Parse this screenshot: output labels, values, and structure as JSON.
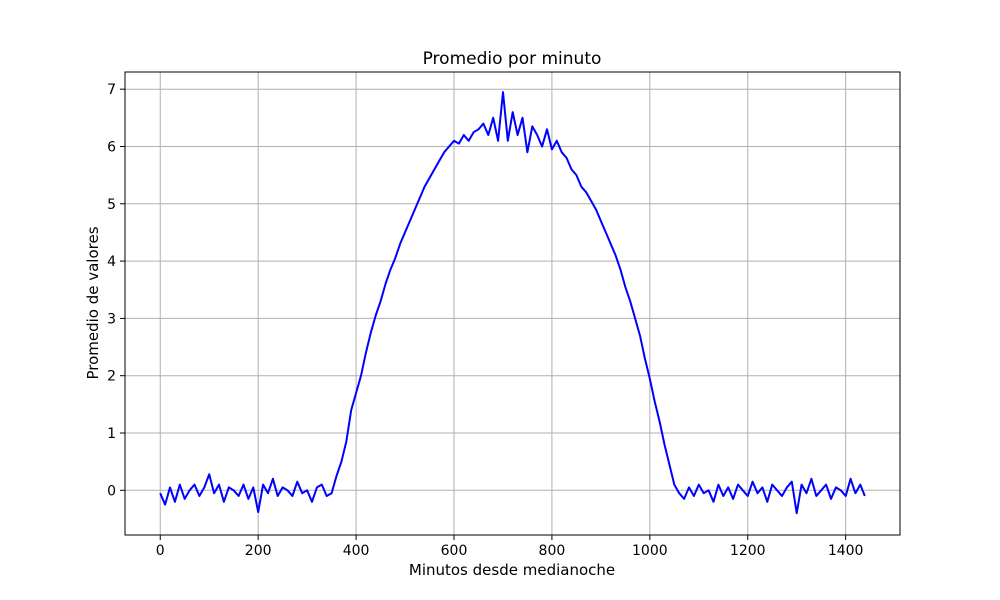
{
  "chart_data": {
    "type": "line",
    "title": "Promedio por minuto",
    "xlabel": "Minutos desde medianoche",
    "ylabel": "Promedio de valores",
    "xlim": [
      -72,
      1511
    ],
    "ylim": [
      -0.78,
      7.3
    ],
    "xticks": [
      0,
      200,
      400,
      600,
      800,
      1000,
      1200,
      1400
    ],
    "yticks": [
      0,
      1,
      2,
      3,
      4,
      5,
      6,
      7
    ],
    "grid": true,
    "series": [
      {
        "color": "#0000ff",
        "x": [
          0,
          10,
          20,
          30,
          40,
          50,
          60,
          70,
          80,
          90,
          100,
          110,
          120,
          130,
          140,
          150,
          160,
          170,
          180,
          190,
          200,
          210,
          220,
          230,
          240,
          250,
          260,
          270,
          280,
          290,
          300,
          310,
          320,
          330,
          340,
          350,
          360,
          370,
          380,
          390,
          400,
          410,
          420,
          430,
          440,
          450,
          460,
          470,
          480,
          490,
          500,
          510,
          520,
          530,
          540,
          550,
          560,
          570,
          580,
          590,
          600,
          610,
          620,
          630,
          640,
          650,
          660,
          670,
          680,
          690,
          700,
          710,
          720,
          730,
          740,
          750,
          760,
          770,
          780,
          790,
          800,
          810,
          820,
          830,
          840,
          850,
          860,
          870,
          880,
          890,
          900,
          910,
          920,
          930,
          940,
          950,
          960,
          970,
          980,
          990,
          1000,
          1010,
          1020,
          1030,
          1040,
          1050,
          1060,
          1070,
          1080,
          1090,
          1100,
          1110,
          1120,
          1130,
          1140,
          1150,
          1160,
          1170,
          1180,
          1190,
          1200,
          1210,
          1220,
          1230,
          1240,
          1250,
          1260,
          1270,
          1280,
          1290,
          1300,
          1310,
          1320,
          1330,
          1340,
          1350,
          1360,
          1370,
          1380,
          1390,
          1400,
          1410,
          1420,
          1430,
          1439
        ],
        "y": [
          -0.05,
          -0.25,
          0.05,
          -0.2,
          0.1,
          -0.15,
          0.0,
          0.1,
          -0.1,
          0.05,
          0.28,
          -0.05,
          0.1,
          -0.2,
          0.05,
          0.0,
          -0.1,
          0.1,
          -0.15,
          0.05,
          -0.38,
          0.1,
          -0.05,
          0.2,
          -0.1,
          0.05,
          0.0,
          -0.1,
          0.15,
          -0.05,
          0.0,
          -0.2,
          0.05,
          0.1,
          -0.1,
          -0.05,
          0.25,
          0.5,
          0.85,
          1.4,
          1.7,
          2.0,
          2.4,
          2.75,
          3.05,
          3.3,
          3.6,
          3.85,
          4.05,
          4.3,
          4.5,
          4.7,
          4.9,
          5.1,
          5.3,
          5.45,
          5.6,
          5.75,
          5.9,
          6.0,
          6.1,
          6.05,
          6.2,
          6.1,
          6.25,
          6.3,
          6.4,
          6.2,
          6.5,
          6.1,
          6.95,
          6.1,
          6.6,
          6.2,
          6.5,
          5.9,
          6.35,
          6.2,
          6.0,
          6.3,
          5.95,
          6.1,
          5.9,
          5.8,
          5.6,
          5.5,
          5.3,
          5.2,
          5.05,
          4.9,
          4.7,
          4.5,
          4.3,
          4.1,
          3.85,
          3.55,
          3.3,
          3.0,
          2.7,
          2.3,
          1.95,
          1.55,
          1.2,
          0.8,
          0.45,
          0.1,
          -0.05,
          -0.15,
          0.05,
          -0.1,
          0.1,
          -0.05,
          0.0,
          -0.2,
          0.1,
          -0.1,
          0.05,
          -0.15,
          0.1,
          0.0,
          -0.1,
          0.15,
          -0.05,
          0.05,
          -0.2,
          0.1,
          0.0,
          -0.1,
          0.05,
          0.15,
          -0.4,
          0.1,
          -0.05,
          0.2,
          -0.1,
          0.0,
          0.1,
          -0.15,
          0.05,
          0.0,
          -0.1,
          0.2,
          -0.05,
          0.1,
          -0.1
        ]
      }
    ]
  }
}
